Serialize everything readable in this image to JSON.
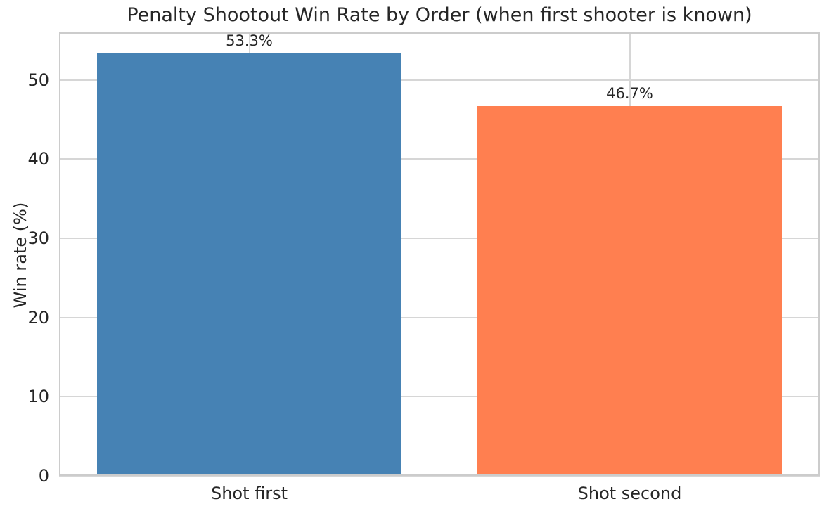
{
  "chart_data": {
    "type": "bar",
    "title": "Penalty Shootout Win Rate by Order (when first shooter is known)",
    "xlabel": "",
    "ylabel": "Win rate (%)",
    "categories": [
      "Shot first",
      "Shot second"
    ],
    "values": [
      53.3,
      46.7
    ],
    "value_labels": [
      "53.3%",
      "46.7%"
    ],
    "bar_colors": [
      "#4682B4",
      "#FF7F50"
    ],
    "yticks": [
      0,
      10,
      20,
      30,
      40,
      50
    ],
    "ylim": [
      0,
      56
    ],
    "bar_width_fraction": 0.8,
    "grid": true,
    "legend": false,
    "background_color": "#ffffff",
    "text_color": "#262626",
    "grid_color": "#d6d6d6",
    "spine_color": "#cccccc"
  }
}
